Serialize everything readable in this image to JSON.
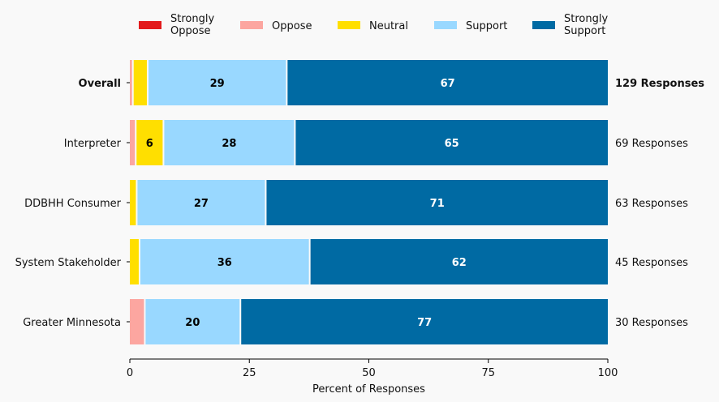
{
  "chart_data": {
    "type": "bar",
    "orientation": "horizontal",
    "stacked": true,
    "title": "",
    "xlabel": "Percent of Responses",
    "ylabel": "",
    "xlim": [
      0,
      100
    ],
    "xticks": [
      0,
      25,
      50,
      75,
      100
    ],
    "grid": false,
    "legend_position": "top",
    "categories": [
      "Overall",
      "Interpreter",
      "DDBHH Consumer",
      "System Stakeholder",
      "Greater Minnesota"
    ],
    "bold_categories": [
      "Overall"
    ],
    "responses": [
      "129 Responses",
      "69 Responses",
      "63 Responses",
      "45 Responses",
      "30 Responses"
    ],
    "series": [
      {
        "name": "Strongly Oppose",
        "legend_lines": [
          "Strongly",
          "Oppose"
        ],
        "color": "#e31a1c",
        "label_color": "#000000",
        "values": [
          0,
          0,
          0,
          0,
          0
        ]
      },
      {
        "name": "Oppose",
        "legend_lines": [
          "Oppose"
        ],
        "color": "#fca6a0",
        "label_color": "#000000",
        "values": [
          0.8,
          1.4,
          0,
          0,
          3.3
        ]
      },
      {
        "name": "Neutral",
        "legend_lines": [
          "Neutral"
        ],
        "color": "#ffdf00",
        "label_color": "#000000",
        "values": [
          3.1,
          5.8,
          1.6,
          2.2,
          0
        ]
      },
      {
        "name": "Support",
        "legend_lines": [
          "Support"
        ],
        "color": "#99d8ff",
        "label_color": "#000000",
        "values": [
          29.1,
          27.5,
          27.0,
          35.6,
          20.0
        ]
      },
      {
        "name": "Strongly Support",
        "legend_lines": [
          "Strongly",
          "Support"
        ],
        "color": "#006aa3",
        "label_color": "#ffffff",
        "values": [
          67.0,
          65.3,
          71.4,
          62.2,
          76.7
        ]
      }
    ],
    "data_labels": {
      "min_value_shown": 5,
      "format": "rounded integer"
    }
  }
}
